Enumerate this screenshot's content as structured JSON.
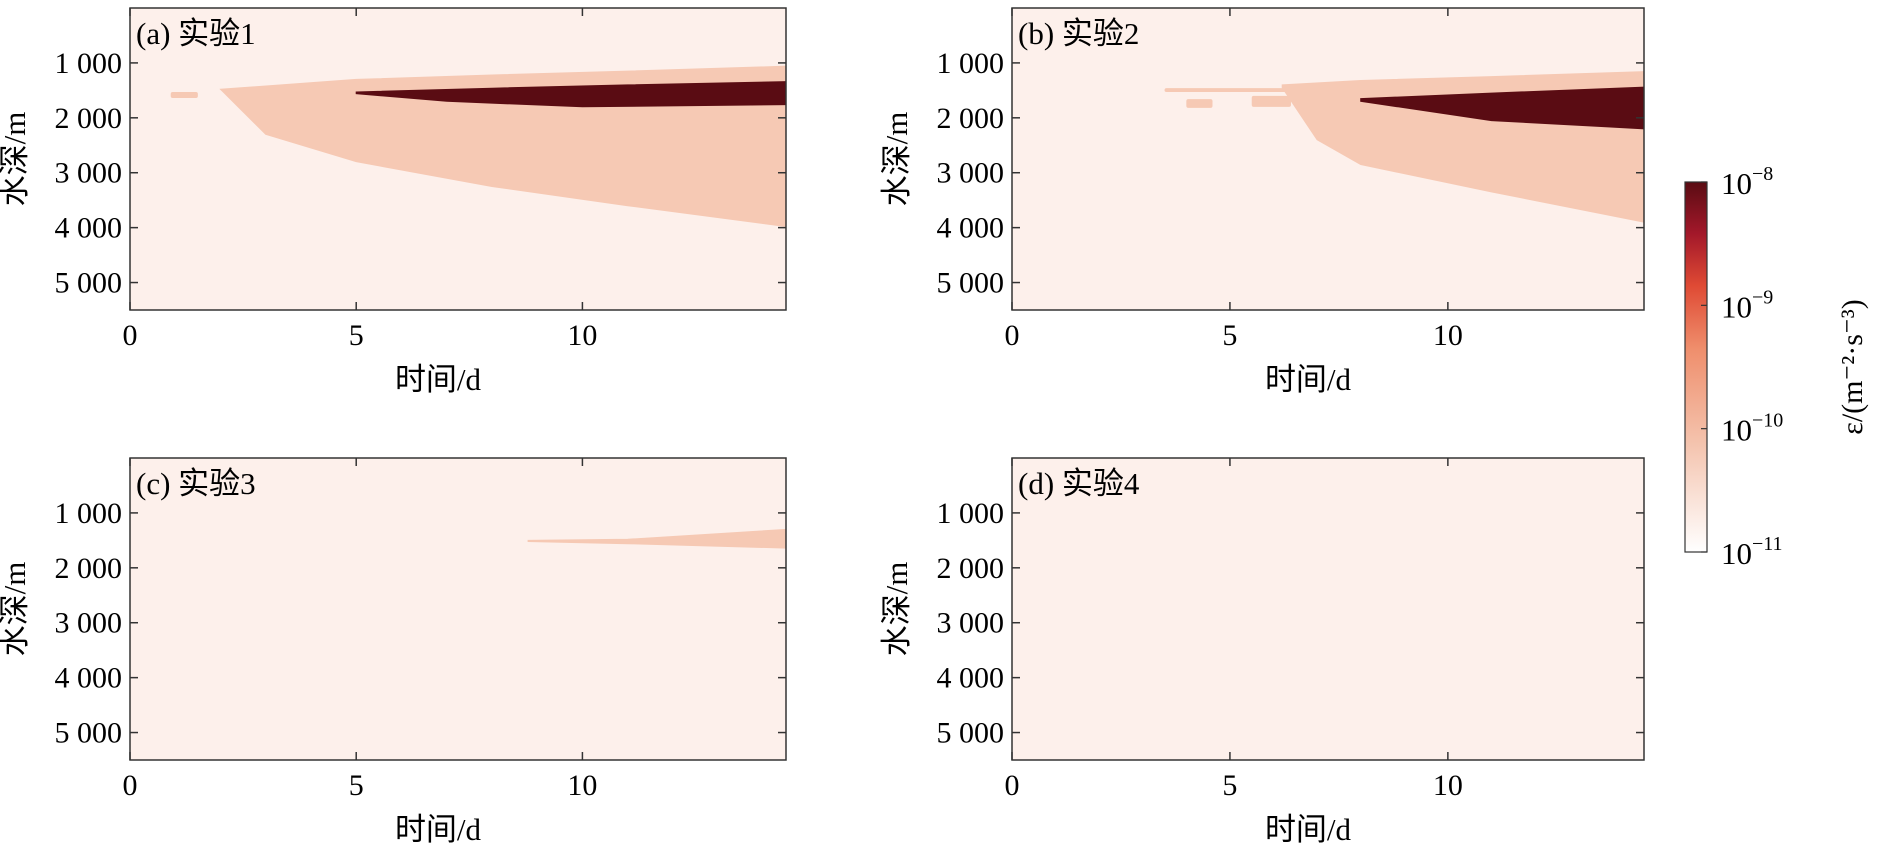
{
  "figure": {
    "colorbar": {
      "label": "ε/(m⁻²·s⁻³)",
      "scale": "log",
      "range": [
        "1e-11",
        "1e-8"
      ],
      "tick_labels": [
        {
          "base": "10",
          "exp": "−8"
        },
        {
          "base": "10",
          "exp": "−9"
        },
        {
          "base": "10",
          "exp": "−10"
        },
        {
          "base": "10",
          "exp": "−11"
        }
      ],
      "colors": [
        "#fdf0eb",
        "#f6c9b4",
        "#ee6f4a",
        "#a3182a",
        "#5a0c13"
      ]
    }
  },
  "chart_data": [
    {
      "type": "heatmap",
      "panel_label": "(a) 实验1",
      "xlabel": "时间/d",
      "ylabel": "水深/m",
      "xticks": [
        "0",
        "5",
        "10"
      ],
      "yticks": [
        "1 000",
        "2 000",
        "3 000",
        "4 000",
        "5 000"
      ],
      "xlim": [
        0,
        14.5
      ],
      "ylim": [
        5500,
        0
      ],
      "background_level": "1e-11",
      "regions": [
        {
          "level": "1e-10",
          "name": "moderate dissipation",
          "start_day": 2.0,
          "top_depth_m": [
            [
              2.0,
              1480
            ],
            [
              5.0,
              1300
            ],
            [
              8.0,
              1220
            ],
            [
              11.0,
              1150
            ],
            [
              14.5,
              1060
            ]
          ],
          "bottom_depth_m": [
            [
              2.0,
              1480
            ],
            [
              3.0,
              2300
            ],
            [
              5.0,
              2800
            ],
            [
              8.0,
              3250
            ],
            [
              11.0,
              3600
            ],
            [
              14.5,
              3980
            ]
          ]
        },
        {
          "level": "1e-10",
          "name": "early patch",
          "start_day": 0.9,
          "end_day": 1.5,
          "top_depth_m": 1530,
          "bottom_depth_m": 1640
        },
        {
          "level": "1e-8",
          "name": "strong dissipation",
          "start_day": 5.0,
          "top_depth_m": [
            [
              5.0,
              1530
            ],
            [
              8.0,
              1460
            ],
            [
              11.0,
              1400
            ],
            [
              14.5,
              1340
            ]
          ],
          "bottom_depth_m": [
            [
              5.0,
              1560
            ],
            [
              7.0,
              1700
            ],
            [
              10.0,
              1800
            ],
            [
              14.5,
              1760
            ]
          ]
        }
      ]
    },
    {
      "type": "heatmap",
      "panel_label": "(b) 实验2",
      "xlabel": "时间/d",
      "ylabel": "水深/m",
      "xticks": [
        "0",
        "5",
        "10"
      ],
      "yticks": [
        "1 000",
        "2 000",
        "3 000",
        "4 000",
        "5 000"
      ],
      "xlim": [
        0,
        14.5
      ],
      "ylim": [
        5500,
        0
      ],
      "background_level": "1e-11",
      "regions": [
        {
          "level": "1e-10",
          "name": "thin early layer",
          "start_day": 3.5,
          "end_day": 7.0,
          "top_depth_m": 1460,
          "bottom_depth_m": 1530
        },
        {
          "level": "1e-10",
          "name": "patch 1",
          "start_day": 4.0,
          "end_day": 4.6,
          "top_depth_m": 1660,
          "bottom_depth_m": 1820
        },
        {
          "level": "1e-10",
          "name": "patch 2",
          "start_day": 5.5,
          "end_day": 6.4,
          "top_depth_m": 1600,
          "bottom_depth_m": 1800
        },
        {
          "level": "1e-10",
          "name": "moderate dissipation",
          "start_day": 6.2,
          "top_depth_m": [
            [
              6.2,
              1400
            ],
            [
              8.0,
              1320
            ],
            [
              11.0,
              1250
            ],
            [
              14.5,
              1160
            ]
          ],
          "bottom_depth_m": [
            [
              6.2,
              1450
            ],
            [
              7.0,
              2400
            ],
            [
              8.0,
              2850
            ],
            [
              11.0,
              3350
            ],
            [
              14.5,
              3900
            ]
          ]
        },
        {
          "level": "1e-8",
          "name": "strong dissipation",
          "start_day": 8.0,
          "top_depth_m": [
            [
              8.0,
              1650
            ],
            [
              11.0,
              1550
            ],
            [
              14.5,
              1440
            ]
          ],
          "bottom_depth_m": [
            [
              8.0,
              1700
            ],
            [
              11.0,
              2050
            ],
            [
              14.5,
              2200
            ]
          ]
        }
      ]
    },
    {
      "type": "heatmap",
      "panel_label": "(c) 实验3",
      "xlabel": "时间/d",
      "ylabel": "水深/m",
      "xticks": [
        "0",
        "5",
        "10"
      ],
      "yticks": [
        "1 000",
        "2 000",
        "3 000",
        "4 000",
        "5 000"
      ],
      "xlim": [
        0,
        14.5
      ],
      "ylim": [
        5500,
        0
      ],
      "background_level": "1e-11",
      "regions": [
        {
          "level": "1e-10",
          "name": "moderate dissipation",
          "start_day": 8.8,
          "top_depth_m": [
            [
              8.8,
              1500
            ],
            [
              11.0,
              1480
            ],
            [
              14.5,
              1300
            ]
          ],
          "bottom_depth_m": [
            [
              8.8,
              1520
            ],
            [
              11.0,
              1560
            ],
            [
              14.5,
              1640
            ]
          ]
        }
      ]
    },
    {
      "type": "heatmap",
      "panel_label": "(d) 实验4",
      "xlabel": "时间/d",
      "ylabel": "水深/m",
      "xticks": [
        "0",
        "5",
        "10"
      ],
      "yticks": [
        "1 000",
        "2 000",
        "3 000",
        "4 000",
        "5 000"
      ],
      "xlim": [
        0,
        14.5
      ],
      "ylim": [
        5500,
        0
      ],
      "background_level": "1e-11",
      "regions": []
    }
  ]
}
